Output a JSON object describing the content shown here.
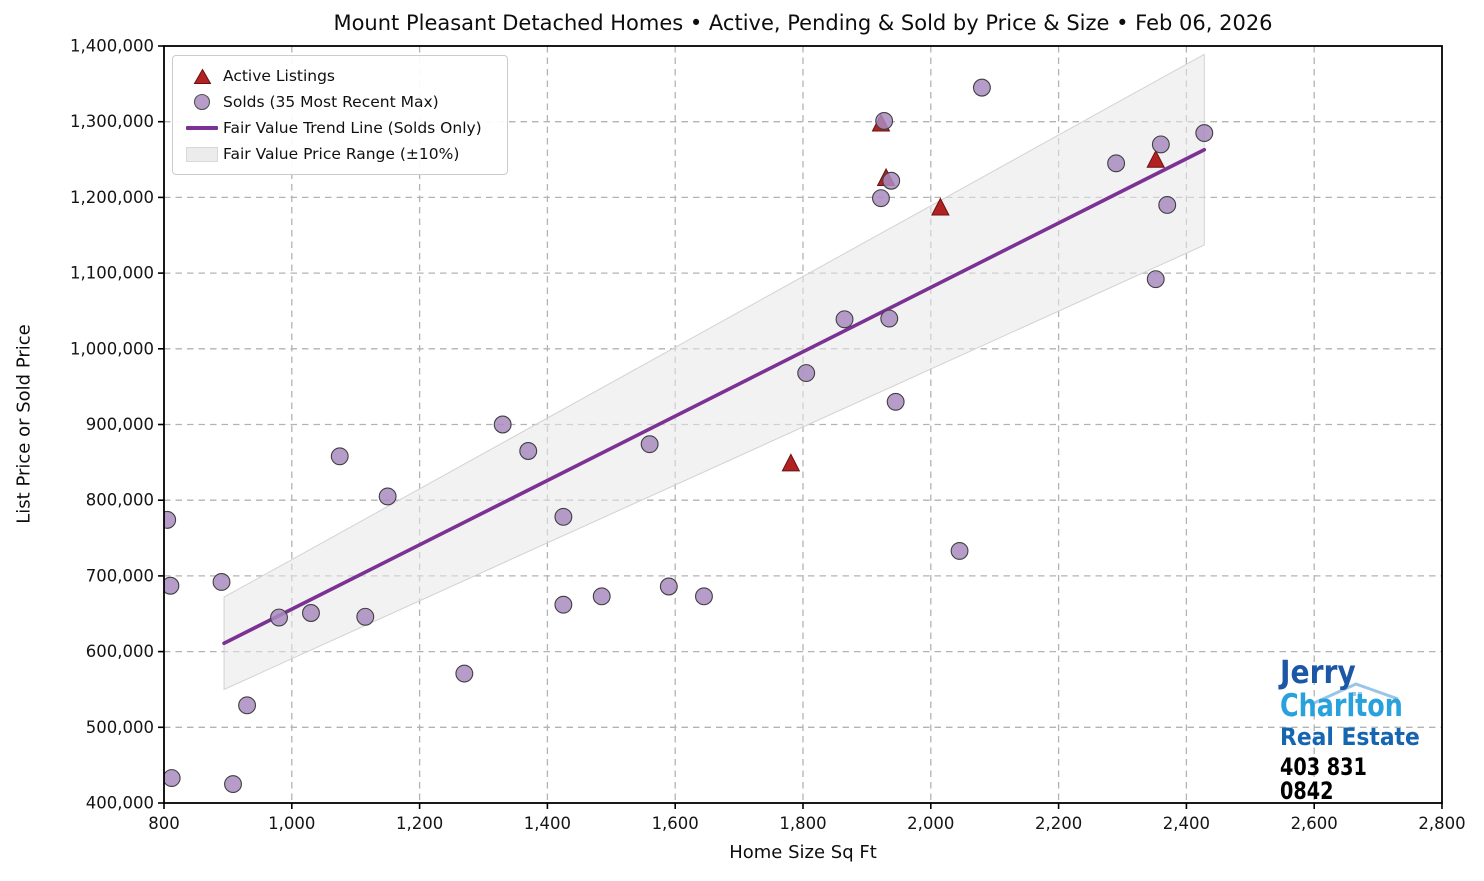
{
  "chart_data": {
    "type": "scatter",
    "title": "Mount Pleasant Detached Homes • Active, Pending & Sold by Price & Size • Feb 06, 2026",
    "xlabel": "Home Size Sq Ft",
    "ylabel": "List Price or Sold Price",
    "xlim": [
      800,
      2800
    ],
    "ylim": [
      400000,
      1400000
    ],
    "x_ticks": [
      "800",
      "1,000",
      "1,200",
      "1,400",
      "1,600",
      "1,800",
      "2,000",
      "2,200",
      "2,400",
      "2,600",
      "2,800"
    ],
    "y_ticks": [
      "400,000",
      "500,000",
      "600,000",
      "700,000",
      "800,000",
      "900,000",
      "1,000,000",
      "1,100,000",
      "1,200,000",
      "1,300,000",
      "1,400,000"
    ],
    "grid": true,
    "legend_position": "upper-left",
    "series": [
      {
        "name": "Active Listings",
        "type": "scatter",
        "marker": "triangle",
        "color": "#b22222",
        "edge_color": "#6b1111",
        "points": [
          [
            1781,
            848000
          ],
          [
            1922,
            1297000
          ],
          [
            1930,
            1225000
          ],
          [
            2015,
            1186000
          ],
          [
            2352,
            1249000
          ]
        ]
      },
      {
        "name": "Solds (35 Most Recent Max)",
        "type": "scatter",
        "marker": "circle",
        "color": "#a98bc0",
        "edge_color": "#404040",
        "points": [
          [
            805,
            774000
          ],
          [
            810,
            687000
          ],
          [
            812,
            433000
          ],
          [
            890,
            692000
          ],
          [
            908,
            425000
          ],
          [
            930,
            529000
          ],
          [
            980,
            645000
          ],
          [
            1030,
            651000
          ],
          [
            1075,
            858000
          ],
          [
            1115,
            646000
          ],
          [
            1150,
            805000
          ],
          [
            1270,
            571000
          ],
          [
            1330,
            900000
          ],
          [
            1370,
            865000
          ],
          [
            1425,
            778000
          ],
          [
            1425,
            662000
          ],
          [
            1485,
            673000
          ],
          [
            1560,
            874000
          ],
          [
            1590,
            686000
          ],
          [
            1645,
            673000
          ],
          [
            1805,
            968000
          ],
          [
            1865,
            1039000
          ],
          [
            1922,
            1199000
          ],
          [
            1927,
            1301000
          ],
          [
            1935,
            1040000
          ],
          [
            1938,
            1222000
          ],
          [
            1945,
            930000
          ],
          [
            2045,
            733000
          ],
          [
            2080,
            1345000
          ],
          [
            2290,
            1245000
          ],
          [
            2352,
            1092000
          ],
          [
            2360,
            1270000
          ],
          [
            2370,
            1190000
          ],
          [
            2428,
            1285000
          ]
        ]
      },
      {
        "name": "Fair Value Trend Line (Solds Only)",
        "type": "line",
        "color": "#7b3294",
        "points": [
          [
            894,
            611000
          ],
          [
            2428,
            1263000
          ]
        ]
      },
      {
        "name": "Fair Value Price Range (±10%)",
        "type": "band",
        "color": "#e8e8e8",
        "edge_color": "#d2d2d2",
        "upper": [
          [
            894,
            672000
          ],
          [
            2428,
            1389000
          ]
        ],
        "lower": [
          [
            894,
            550000
          ],
          [
            2428,
            1137000
          ]
        ]
      }
    ]
  },
  "colors": {
    "active_marker": "#b22222",
    "sold_marker": "#a98bc0",
    "trend_line": "#7b3294",
    "band_fill": "#e8e8e8",
    "gridline": "#b3b3b3",
    "axis": "#000000",
    "logo_jerry": "#1c57a5",
    "logo_charlton": "#27a2dc",
    "logo_real_estate": "#1565b0",
    "logo_phone": "#000000"
  },
  "logo": {
    "line1": "Jerry",
    "line2": "Charlton",
    "line3": "Real Estate",
    "line4": "403 831 0842"
  }
}
